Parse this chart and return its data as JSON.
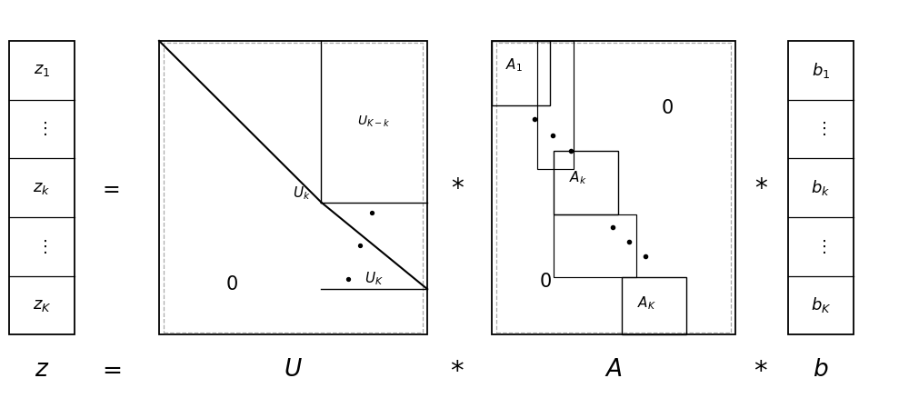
{
  "bg_color": "#ffffff",
  "text_color": "#000000",
  "fig_width": 10.0,
  "fig_height": 4.49,
  "dpi": 100
}
